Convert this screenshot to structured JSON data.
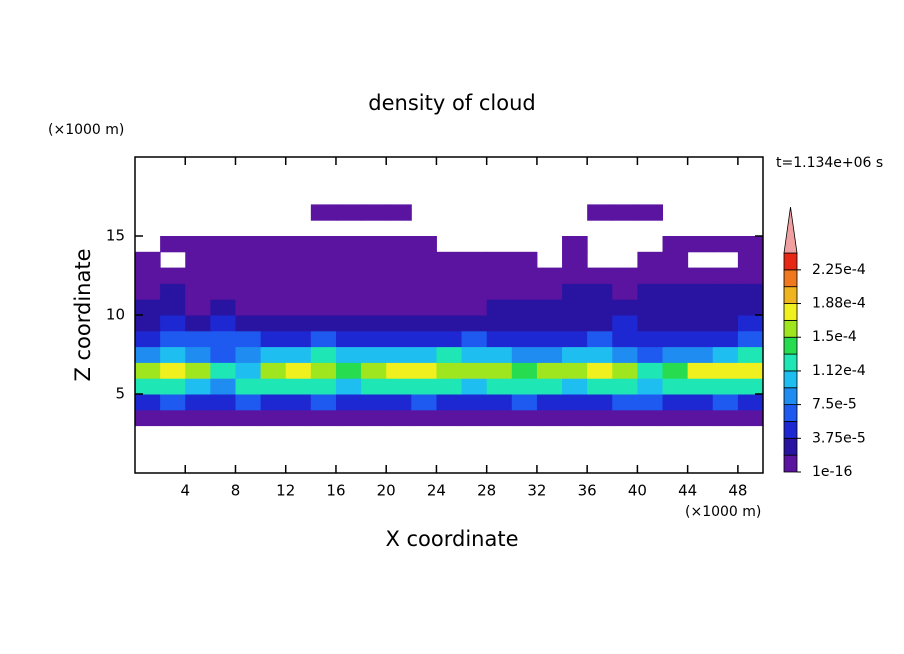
{
  "chart_data": {
    "type": "contour",
    "title": "density of cloud",
    "subtitle": "t=1.134e+06 s",
    "x_label": "X coordinate",
    "y_label": "Z coordinate",
    "x_unit": "(×1000 m)",
    "y_unit": "(×1000 m)",
    "xlim": [
      0,
      50
    ],
    "ylim": [
      0,
      20
    ],
    "xticks": [
      4,
      8,
      12,
      16,
      20,
      24,
      28,
      32,
      36,
      40,
      44,
      48
    ],
    "yticks": [
      5,
      10,
      15
    ],
    "x": [
      1,
      3,
      5,
      7,
      9,
      11,
      13,
      15,
      17,
      19,
      21,
      23,
      25,
      27,
      29,
      31,
      33,
      35,
      37,
      39,
      41,
      43,
      45,
      47,
      49
    ],
    "z": [
      3.5,
      4.5,
      5.5,
      6.5,
      7.5,
      8.5,
      9.5,
      10.5,
      11.5,
      12.5,
      13.5,
      14.5,
      16.5
    ],
    "values": [
      [
        1e-05,
        1e-05,
        1e-05,
        1e-05,
        1e-05,
        1e-05,
        1e-05,
        1e-05,
        1e-05,
        1e-05,
        1e-05,
        1e-05,
        1e-05,
        1e-05,
        1e-05,
        1e-05,
        1e-05,
        1e-05,
        1e-05,
        1e-05,
        1e-05,
        1e-05,
        1e-05,
        1e-05,
        1e-05
      ],
      [
        4e-05,
        6e-05,
        4e-05,
        4e-05,
        6e-05,
        4e-05,
        4e-05,
        6e-05,
        4e-05,
        4e-05,
        4e-05,
        6e-05,
        4e-05,
        4e-05,
        4e-05,
        6e-05,
        4e-05,
        4e-05,
        4e-05,
        6e-05,
        6e-05,
        4e-05,
        4e-05,
        6e-05,
        4e-05
      ],
      [
        0.00012,
        0.00012,
        0.0001,
        8e-05,
        0.00012,
        0.00012,
        0.00012,
        0.00012,
        0.0001,
        0.00012,
        0.00012,
        0.00012,
        0.00012,
        0.0001,
        0.00012,
        0.00012,
        0.00012,
        0.0001,
        0.00012,
        0.00012,
        0.0001,
        0.00012,
        0.00012,
        0.00012,
        0.00012
      ],
      [
        0.00016,
        0.00018,
        0.00016,
        0.00012,
        0.0001,
        0.00016,
        0.00018,
        0.00016,
        0.00014,
        0.00016,
        0.00018,
        0.00018,
        0.00016,
        0.00016,
        0.00016,
        0.00014,
        0.00016,
        0.00016,
        0.00017,
        0.00016,
        0.00012,
        0.00014,
        0.00017,
        0.00018,
        0.00018
      ],
      [
        9e-05,
        0.0001,
        8e-05,
        6e-05,
        8e-05,
        0.0001,
        0.00011,
        0.00012,
        0.00011,
        0.0001,
        0.0001,
        0.00011,
        0.00012,
        0.00011,
        0.0001,
        8e-05,
        9e-05,
        0.0001,
        0.00011,
        9e-05,
        7e-05,
        8e-05,
        8e-05,
        0.0001,
        0.00012
      ],
      [
        5e-05,
        6e-05,
        7e-05,
        7e-05,
        7e-05,
        5e-05,
        5e-05,
        6e-05,
        5e-05,
        5e-05,
        4e-05,
        5e-05,
        5e-05,
        6e-05,
        5e-05,
        5e-05,
        4e-05,
        5e-05,
        6e-05,
        5e-05,
        5e-05,
        5e-05,
        4e-05,
        5e-05,
        6e-05
      ],
      [
        3e-05,
        4e-05,
        3e-05,
        4e-05,
        3e-05,
        3e-05,
        3e-05,
        2e-05,
        3e-05,
        3e-05,
        3e-05,
        3e-05,
        2e-05,
        3e-05,
        3e-05,
        3e-05,
        3e-05,
        3e-05,
        3e-05,
        4e-05,
        3e-05,
        3e-05,
        3e-05,
        3e-05,
        4e-05
      ],
      [
        2.5e-05,
        2.5e-05,
        1.5e-05,
        2.5e-05,
        1.5e-05,
        1.5e-05,
        1.5e-05,
        1e-05,
        1.5e-05,
        1.5e-05,
        1.5e-05,
        1e-05,
        1e-05,
        1.5e-05,
        2.5e-05,
        2.5e-05,
        2.5e-05,
        2.5e-05,
        2.5e-05,
        2e-05,
        2.5e-05,
        2.5e-05,
        2.5e-05,
        2.5e-05,
        2.5e-05
      ],
      [
        1.2e-05,
        2.5e-05,
        1.2e-05,
        1e-05,
        1e-05,
        8e-06,
        8e-06,
        8e-06,
        1e-05,
        1e-05,
        1e-05,
        1e-05,
        1e-05,
        1e-05,
        1e-05,
        1e-05,
        1.2e-05,
        2e-05,
        2.5e-05,
        1.2e-05,
        2.5e-05,
        2e-05,
        2.5e-05,
        2.5e-05,
        2.5e-05
      ],
      [
        8e-06,
        8e-06,
        8e-06,
        8e-06,
        8e-06,
        8e-06,
        8e-06,
        8e-06,
        8e-06,
        8e-06,
        8e-06,
        8e-06,
        8e-06,
        8e-06,
        8e-06,
        8e-06,
        8e-06,
        8e-06,
        8e-06,
        8e-06,
        8e-06,
        8e-06,
        8e-06,
        8e-06,
        8e-06
      ],
      [
        6e-06,
        null,
        6e-06,
        6e-06,
        6e-06,
        6e-06,
        6e-06,
        6e-06,
        6e-06,
        6e-06,
        6e-06,
        6e-06,
        6e-06,
        6e-06,
        6e-06,
        6e-06,
        null,
        6e-06,
        null,
        null,
        6e-06,
        6e-06,
        null,
        null,
        6e-06
      ],
      [
        null,
        5e-06,
        5e-06,
        5e-06,
        5e-06,
        5e-06,
        5e-06,
        5e-06,
        5e-06,
        5e-06,
        5e-06,
        5e-06,
        null,
        null,
        null,
        null,
        null,
        5e-06,
        null,
        null,
        null,
        5e-06,
        5e-06,
        5e-06,
        5e-06
      ],
      [
        null,
        null,
        null,
        null,
        null,
        null,
        null,
        5e-06,
        5e-06,
        5e-06,
        5e-06,
        null,
        null,
        null,
        null,
        null,
        null,
        null,
        5e-06,
        5e-06,
        5e-06,
        null,
        null,
        null,
        null
      ]
    ],
    "levels": [
      1e-16,
      1.875e-05,
      3.75e-05,
      5.625e-05,
      7.5e-05,
      9.375e-05,
      0.0001125,
      0.00013125,
      0.00015,
      0.00016875,
      0.0001875,
      0.00020625,
      0.000225,
      0.00024375
    ],
    "colors": [
      "#5a14a0",
      "#2814a0",
      "#1e28d2",
      "#1e5af0",
      "#1e8cf0",
      "#1ebef0",
      "#1ee6b4",
      "#28dc50",
      "#a0e61e",
      "#f0f01e",
      "#f0b41e",
      "#f0781e",
      "#e62814"
    ],
    "overflow_color": "#f0a0a0",
    "colorbar_ticks": [
      1e-16,
      {
        "value": 3.75e-05,
        "label": "3.75e-5"
      },
      {
        "value": 7.5e-05,
        "label": "7.5e-5"
      },
      {
        "value": 0.0001125,
        "label": "1.12e-4"
      },
      {
        "value": 0.00015,
        "label": "1.5e-4"
      },
      {
        "value": 0.0001875,
        "label": "1.88e-4"
      },
      {
        "value": 0.000225,
        "label": "2.25e-4"
      }
    ]
  }
}
